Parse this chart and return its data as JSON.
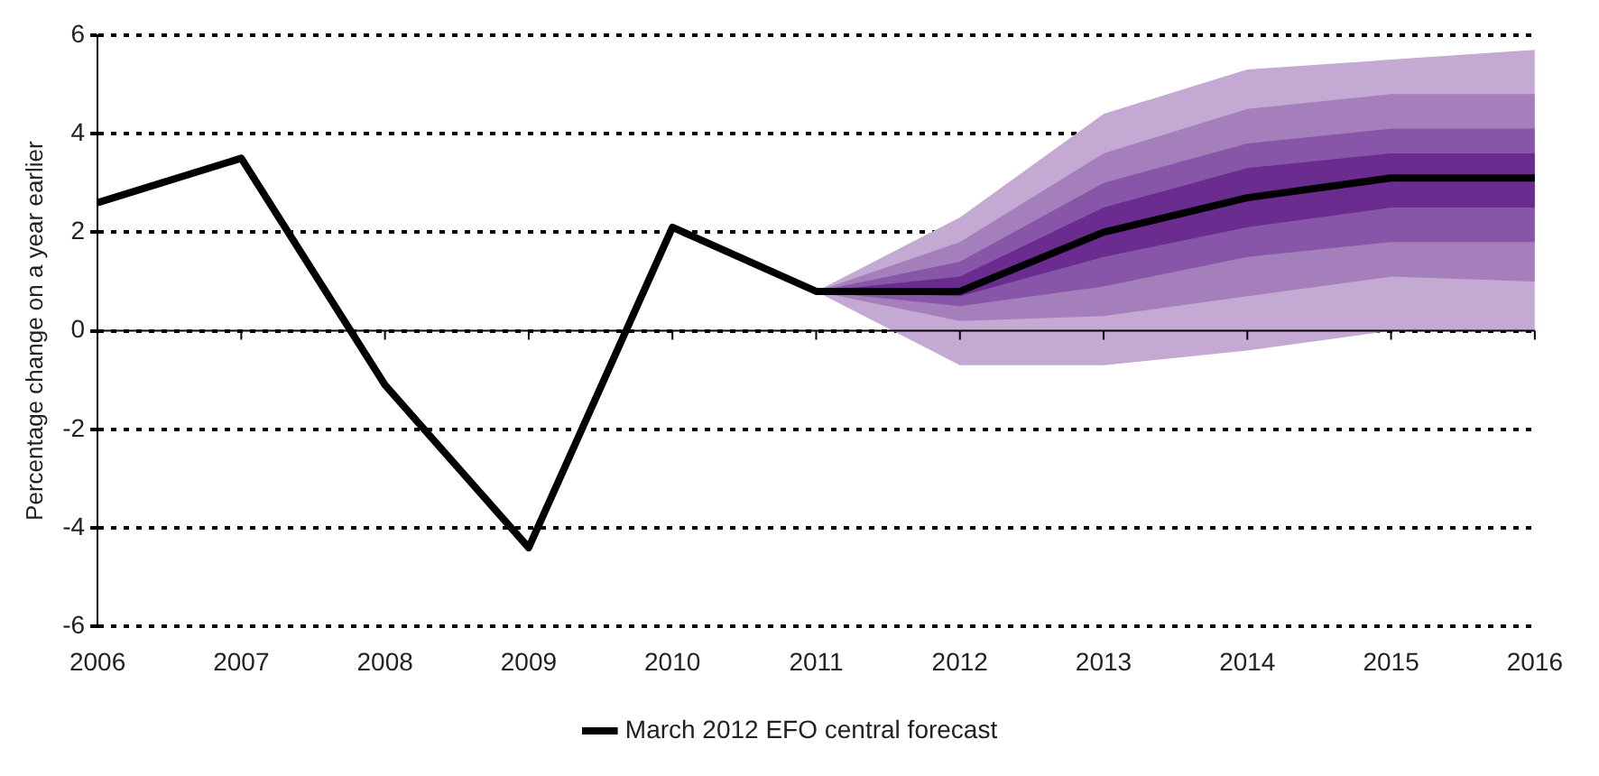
{
  "chart_data": {
    "type": "line",
    "ylabel": "Percentage change on a year earlier",
    "categories": [
      "2006",
      "2007",
      "2008",
      "2009",
      "2010",
      "2011",
      "2012",
      "2013",
      "2014",
      "2015",
      "2016"
    ],
    "ylim": [
      -6,
      6
    ],
    "yticks": [
      -6,
      -4,
      -2,
      0,
      2,
      4,
      6
    ],
    "grid": "y",
    "legend": "bottom",
    "series": [
      {
        "type": "line",
        "color": "#c4a9d3",
        "values": [
          null,
          null,
          null,
          null,
          null,
          null,
          null,
          null,
          null,
          null,
          null
        ],
        "lower": [
          null,
          null,
          null,
          null,
          null,
          0.8,
          -0.7,
          -0.7,
          -0.4,
          0.0,
          0.0
        ],
        "upper": [
          null,
          null,
          null,
          null,
          null,
          0.8,
          2.3,
          4.4,
          5.3,
          5.5,
          5.7
        ]
      },
      {
        "type": "line",
        "color": "#a47fbb",
        "values": [
          null,
          null,
          null,
          null,
          null,
          null,
          null,
          null,
          null,
          null,
          null
        ],
        "lower": [
          null,
          null,
          null,
          null,
          null,
          0.8,
          0.2,
          0.3,
          0.7,
          1.1,
          1.0
        ],
        "upper": [
          null,
          null,
          null,
          null,
          null,
          0.8,
          1.8,
          3.6,
          4.5,
          4.8,
          4.8
        ]
      },
      {
        "type": "line",
        "color": "#8756a8",
        "values": [
          null,
          null,
          null,
          null,
          null,
          null,
          null,
          null,
          null,
          null,
          null
        ],
        "lower": [
          null,
          null,
          null,
          null,
          null,
          0.8,
          0.5,
          0.9,
          1.5,
          1.8,
          1.8
        ],
        "upper": [
          null,
          null,
          null,
          null,
          null,
          0.8,
          1.4,
          3.0,
          3.8,
          4.1,
          4.1
        ]
      },
      {
        "type": "line",
        "color": "#6a2c8e",
        "values": [
          null,
          null,
          null,
          null,
          null,
          null,
          null,
          null,
          null,
          null,
          null
        ],
        "lower": [
          null,
          null,
          null,
          null,
          null,
          0.8,
          0.7,
          1.5,
          2.1,
          2.5,
          2.5
        ],
        "upper": [
          null,
          null,
          null,
          null,
          null,
          0.8,
          1.1,
          2.5,
          3.3,
          3.6,
          3.6
        ]
      },
      {
        "type": "line",
        "name": "March 2012 EFO central forecast",
        "color": "#000000",
        "values": [
          2.6,
          3.5,
          -1.1,
          -4.4,
          2.1,
          0.8,
          0.8,
          2.0,
          2.7,
          3.1,
          3.1
        ]
      }
    ]
  }
}
